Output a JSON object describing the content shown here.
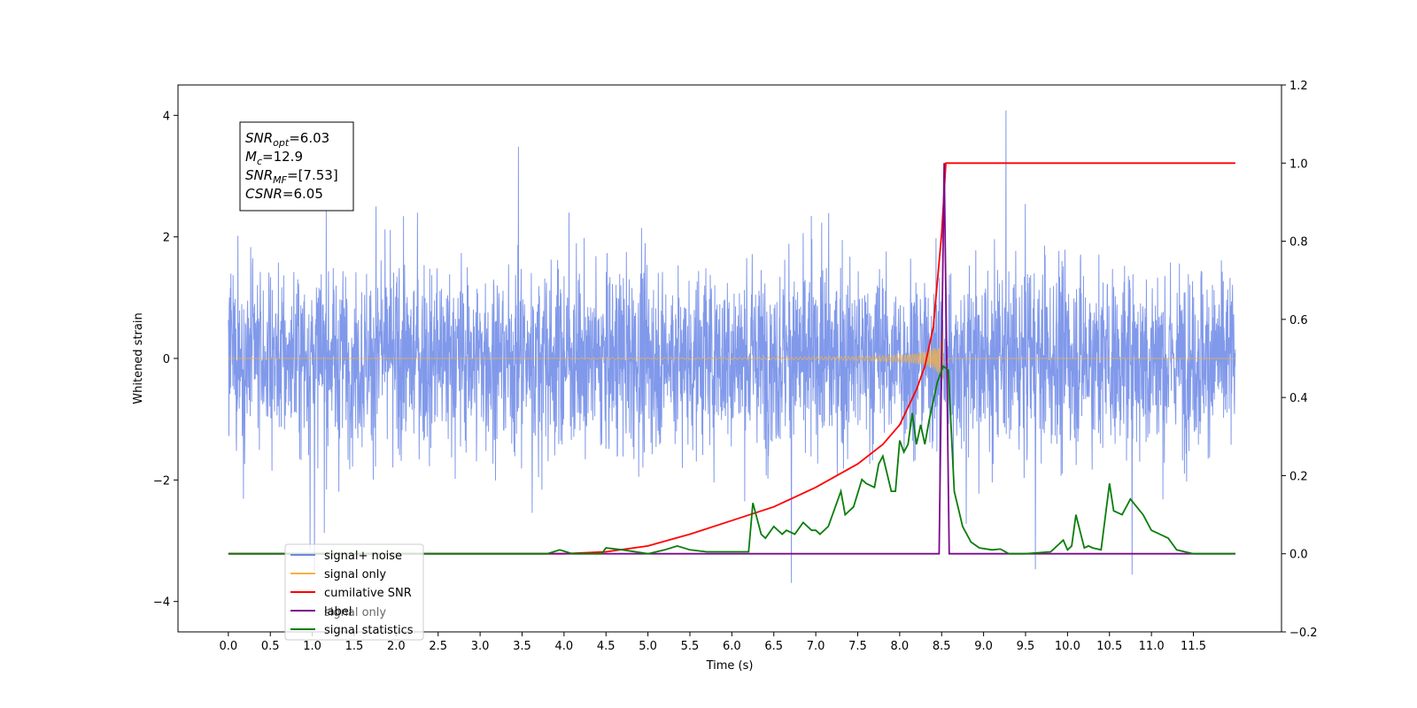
{
  "chart_data": {
    "type": "line",
    "xlabel": "Time (s)",
    "ylabel": "Whitened strain",
    "xlim": [
      -0.6,
      12.55
    ],
    "ylim": [
      -4.5,
      4.5
    ],
    "ylim_right": [
      -0.2,
      1.2
    ],
    "x_ticks": [
      0.0,
      0.5,
      1.0,
      1.5,
      2.0,
      2.5,
      3.0,
      3.5,
      4.0,
      4.5,
      5.0,
      5.5,
      6.0,
      6.5,
      7.0,
      7.5,
      8.0,
      8.5,
      9.0,
      9.5,
      10.0,
      10.5,
      11.0,
      11.5
    ],
    "x_tick_labels": [
      "0.0",
      "0.5",
      "1.0",
      "1.5",
      "2.0",
      "2.5",
      "3.0",
      "3.5",
      "4.0",
      "4.5",
      "5.0",
      "5.5",
      "6.0",
      "6.5",
      "7.0",
      "7.5",
      "8.0",
      "8.5",
      "9.0",
      "9.5",
      "10.0",
      "10.5",
      "11.0",
      "11.5"
    ],
    "y_ticks": [
      -4,
      -2,
      0,
      2,
      4
    ],
    "y_tick_labels": [
      "−4",
      "−2",
      "0",
      "2",
      "4"
    ],
    "y_ticks_right": [
      -0.2,
      0.0,
      0.2,
      0.4,
      0.6,
      0.8,
      1.0,
      1.2
    ],
    "y_tick_labels_right": [
      "−0.2",
      "0.0",
      "0.2",
      "0.4",
      "0.6",
      "0.8",
      "1.0",
      "1.2"
    ],
    "grid": false,
    "legend_placement": "lower-left",
    "series": [
      {
        "name": "signal+ noise",
        "axis": "left",
        "color": "#6b87e6",
        "x_range": [
          0.0,
          12.0
        ],
        "envelope_typical": [
          -2.5,
          2.5
        ],
        "peak_max": 4.1,
        "peak_min": -4.1
      },
      {
        "name": "signal only",
        "axis": "left",
        "color": "#f5b342",
        "x_range": [
          0.0,
          12.0
        ],
        "chirp_start": 4.0,
        "merger_time": 8.53,
        "peak_amplitude": 0.55
      },
      {
        "name": "cumilative SNR",
        "axis": "right",
        "color": "#ff0000",
        "x": [
          0.0,
          4.0,
          4.5,
          5.0,
          5.5,
          6.0,
          6.5,
          7.0,
          7.5,
          7.8,
          8.0,
          8.2,
          8.3,
          8.4,
          8.5,
          8.55,
          12.0
        ],
        "y": [
          0.0,
          0.0,
          0.005,
          0.02,
          0.05,
          0.085,
          0.12,
          0.17,
          0.23,
          0.28,
          0.33,
          0.42,
          0.48,
          0.58,
          0.82,
          1.0,
          1.0
        ]
      },
      {
        "name": "label",
        "axis": "right",
        "color": "#7b0a8c",
        "x": [
          0.0,
          8.47,
          8.53,
          8.59,
          12.0
        ],
        "y": [
          0.0,
          0.0,
          1.0,
          0.0,
          0.0
        ]
      },
      {
        "name": "signal statistics",
        "axis": "right",
        "color": "#0a7d0a",
        "x": [
          0.0,
          3.0,
          3.8,
          3.95,
          4.1,
          4.45,
          4.5,
          4.7,
          5.0,
          5.2,
          5.35,
          5.5,
          5.7,
          6.0,
          6.2,
          6.25,
          6.35,
          6.4,
          6.5,
          6.6,
          6.65,
          6.75,
          6.85,
          6.95,
          7.0,
          7.05,
          7.15,
          7.3,
          7.35,
          7.45,
          7.55,
          7.6,
          7.7,
          7.75,
          7.8,
          7.9,
          7.95,
          8.0,
          8.05,
          8.1,
          8.15,
          8.2,
          8.25,
          8.3,
          8.35,
          8.45,
          8.52,
          8.58,
          8.65,
          8.75,
          8.85,
          8.95,
          9.1,
          9.2,
          9.3,
          9.5,
          9.8,
          9.95,
          10.0,
          10.05,
          10.1,
          10.2,
          10.25,
          10.3,
          10.4,
          10.5,
          10.55,
          10.65,
          10.75,
          10.9,
          11.0,
          11.2,
          11.3,
          11.5,
          11.6,
          12.0
        ],
        "y": [
          0.0,
          0.0,
          0.0,
          0.01,
          0.0,
          0.0,
          0.015,
          0.01,
          0.0,
          0.01,
          0.02,
          0.01,
          0.005,
          0.005,
          0.005,
          0.13,
          0.05,
          0.04,
          0.07,
          0.05,
          0.06,
          0.05,
          0.08,
          0.06,
          0.06,
          0.05,
          0.07,
          0.16,
          0.1,
          0.12,
          0.19,
          0.18,
          0.17,
          0.23,
          0.25,
          0.16,
          0.16,
          0.29,
          0.26,
          0.28,
          0.36,
          0.28,
          0.33,
          0.28,
          0.34,
          0.44,
          0.48,
          0.47,
          0.16,
          0.07,
          0.03,
          0.015,
          0.01,
          0.012,
          0.0,
          0.0,
          0.005,
          0.035,
          0.01,
          0.02,
          0.1,
          0.015,
          0.02,
          0.015,
          0.01,
          0.18,
          0.11,
          0.1,
          0.14,
          0.1,
          0.06,
          0.04,
          0.01,
          0.0,
          0.0,
          0.0
        ]
      }
    ],
    "legend_entries": [
      {
        "label": "signal+ noise",
        "color": "#6b87e6"
      },
      {
        "label": "signal only",
        "color": "#f5b342"
      },
      {
        "label": "cumilative SNR",
        "color": "#ff0000"
      },
      {
        "label": "label",
        "color": "#7b0a8c"
      },
      {
        "label": "signal statistics",
        "color": "#0a7d0a"
      }
    ],
    "legend_ghost_text": [
      "signal only"
    ],
    "annotation": {
      "lines": [
        {
          "symbol": "SNR",
          "sub": "opt",
          "value": "=6.03"
        },
        {
          "symbol": "M",
          "sub": "c",
          "value": "=12.9"
        },
        {
          "symbol": "SNR",
          "sub": "MF",
          "value": "=[7.53]"
        },
        {
          "symbol": "CSNR",
          "sub": "",
          "value": "=6.05"
        }
      ]
    }
  }
}
